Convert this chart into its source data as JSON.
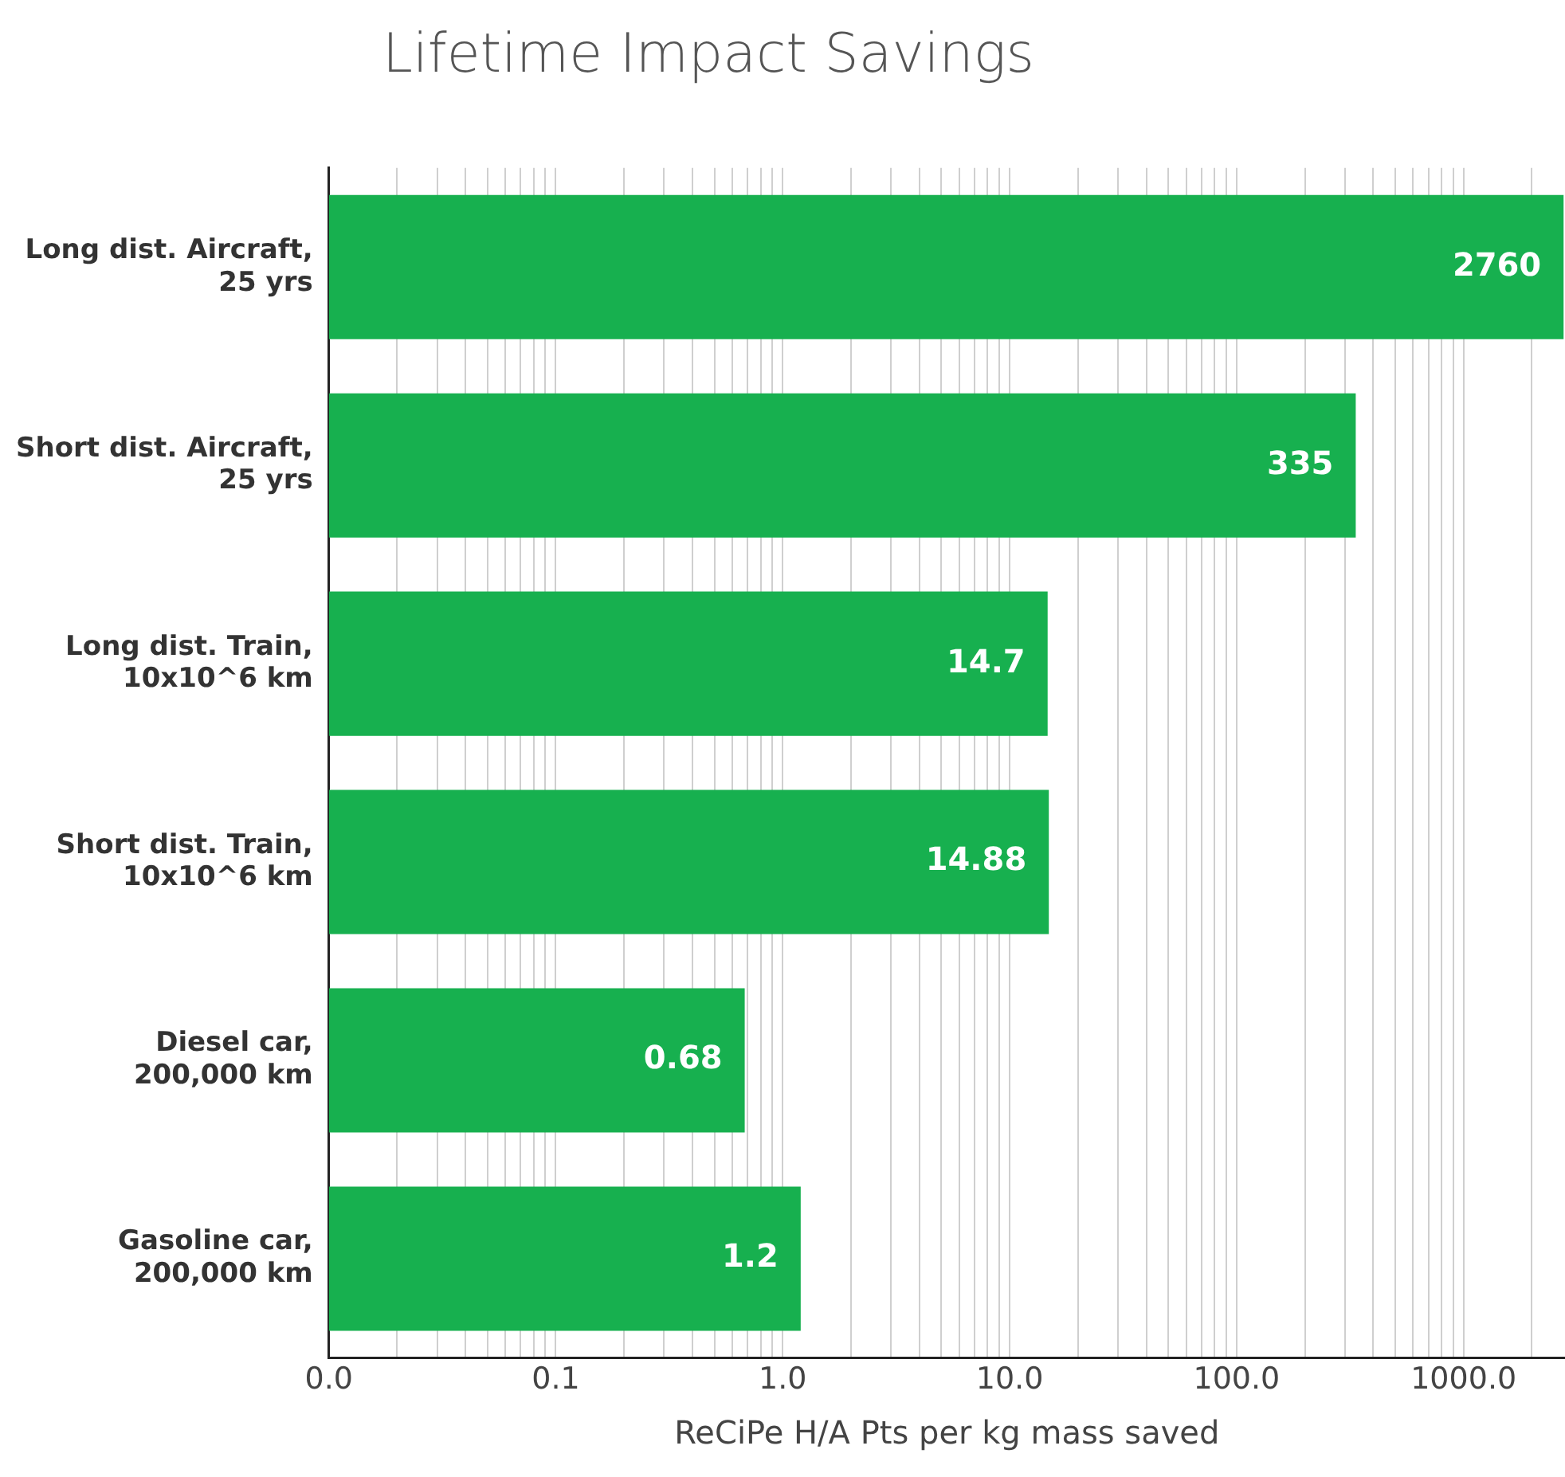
{
  "chart_data": {
    "type": "bar",
    "orientation": "horizontal",
    "title": "Lifetime Impact Savings",
    "xlabel": "ReCiPe H/A Pts per kg mass saved",
    "categories": [
      "Long dist. Aircraft, 25 yrs",
      "Short dist. Aircraft, 25 yrs",
      "Long dist. Train, 10x10^6 km",
      "Short dist. Train, 10x10^6 km",
      "Diesel car, 200,000 km",
      "Gasoline car, 200,000 km"
    ],
    "values": [
      2760,
      335,
      14.7,
      14.88,
      0.68,
      1.2
    ],
    "color": "#17b04f",
    "data_labels": true,
    "log": "x",
    "grid": "x",
    "legend": false,
    "xlim": [
      0.01,
      2800
    ],
    "xticks": [
      {
        "value": 0.01,
        "label": "0.0"
      },
      {
        "value": 0.02,
        "label": null
      },
      {
        "value": 0.03,
        "label": null
      },
      {
        "value": 0.04,
        "label": null
      },
      {
        "value": 0.05,
        "label": null
      },
      {
        "value": 0.06,
        "label": null
      },
      {
        "value": 0.07,
        "label": null
      },
      {
        "value": 0.08,
        "label": null
      },
      {
        "value": 0.09,
        "label": null
      },
      {
        "value": 0.1,
        "label": "0.1"
      },
      {
        "value": 0.2,
        "label": null
      },
      {
        "value": 0.3,
        "label": null
      },
      {
        "value": 0.4,
        "label": null
      },
      {
        "value": 0.5,
        "label": null
      },
      {
        "value": 0.6,
        "label": null
      },
      {
        "value": 0.7,
        "label": null
      },
      {
        "value": 0.8,
        "label": null
      },
      {
        "value": 0.9,
        "label": null
      },
      {
        "value": 1,
        "label": "1.0"
      },
      {
        "value": 2,
        "label": null
      },
      {
        "value": 3,
        "label": null
      },
      {
        "value": 4,
        "label": null
      },
      {
        "value": 5,
        "label": null
      },
      {
        "value": 6,
        "label": null
      },
      {
        "value": 7,
        "label": null
      },
      {
        "value": 8,
        "label": null
      },
      {
        "value": 9,
        "label": null
      },
      {
        "value": 10,
        "label": "10.0"
      },
      {
        "value": 20,
        "label": null
      },
      {
        "value": 30,
        "label": null
      },
      {
        "value": 40,
        "label": null
      },
      {
        "value": 50,
        "label": null
      },
      {
        "value": 60,
        "label": null
      },
      {
        "value": 70,
        "label": null
      },
      {
        "value": 80,
        "label": null
      },
      {
        "value": 90,
        "label": null
      },
      {
        "value": 100,
        "label": "100.0"
      },
      {
        "value": 200,
        "label": null
      },
      {
        "value": 300,
        "label": null
      },
      {
        "value": 400,
        "label": null
      },
      {
        "value": 500,
        "label": null
      },
      {
        "value": 600,
        "label": null
      },
      {
        "value": 700,
        "label": null
      },
      {
        "value": 800,
        "label": null
      },
      {
        "value": 900,
        "label": null
      },
      {
        "value": 1000,
        "label": "1000.0"
      },
      {
        "value": 2000,
        "label": null
      }
    ]
  }
}
